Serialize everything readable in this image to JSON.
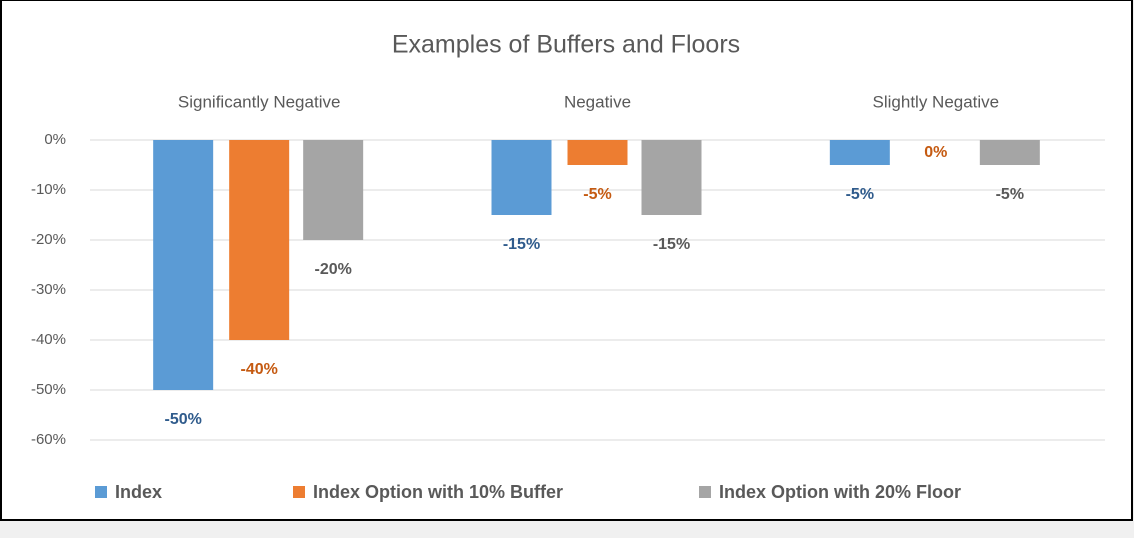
{
  "chart_data": {
    "type": "bar",
    "title": "Examples of Buffers and Floors",
    "categories": [
      "Significantly Negative",
      "Negative",
      "Slightly Negative"
    ],
    "series": [
      {
        "name": "Index",
        "color": "#5b9bd5",
        "label_color": "#2f5b8c",
        "values": [
          -50,
          -15,
          -5
        ],
        "value_labels": [
          "-50%",
          "-15%",
          "-5%"
        ]
      },
      {
        "name": "Index Option with 10% Buffer",
        "color": "#ed7d31",
        "label_color": "#c55a11",
        "values": [
          -40,
          -5,
          0
        ],
        "value_labels": [
          "-40%",
          "-5%",
          "0%"
        ]
      },
      {
        "name": "Index Option with 20% Floor",
        "color": "#a5a5a5",
        "label_color": "#595959",
        "values": [
          -20,
          -15,
          -5
        ],
        "value_labels": [
          "-20%",
          "-15%",
          "-5%"
        ]
      }
    ],
    "ylim": [
      -60,
      0
    ],
    "yticks": [
      {
        "value": 0,
        "label": "0%"
      },
      {
        "value": -10,
        "label": "-10%"
      },
      {
        "value": -20,
        "label": "-20%"
      },
      {
        "value": -30,
        "label": "-30%"
      },
      {
        "value": -40,
        "label": "-40%"
      },
      {
        "value": -50,
        "label": "-50%"
      },
      {
        "value": -60,
        "label": "-60%"
      }
    ],
    "grid": true,
    "legend": "bottom"
  }
}
